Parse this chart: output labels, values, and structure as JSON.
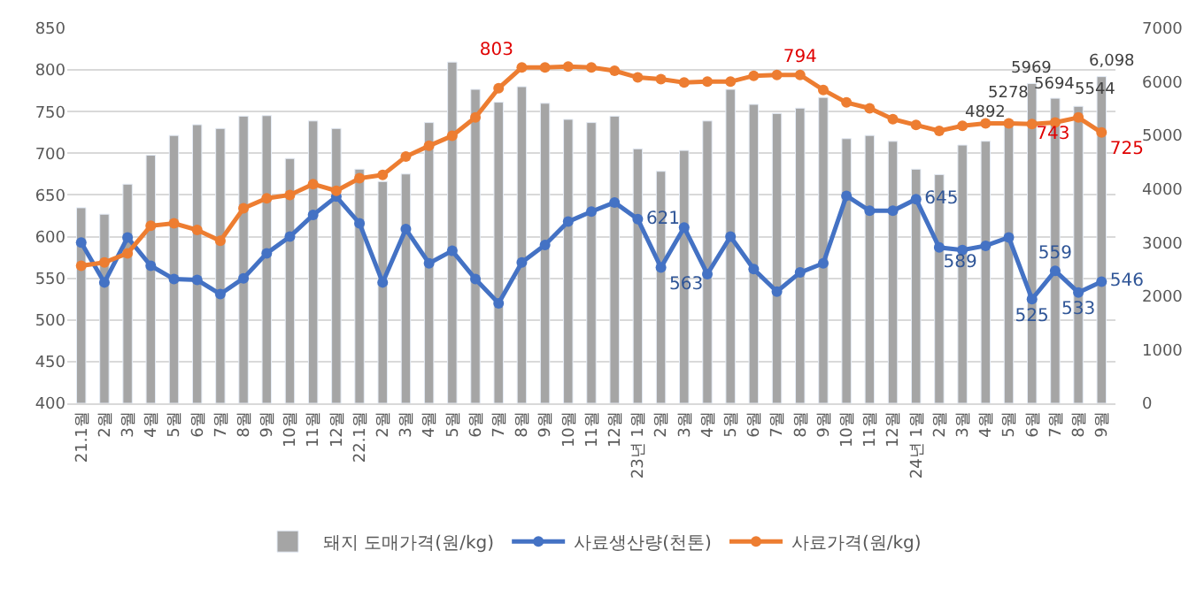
{
  "chart_data": {
    "type": "bar",
    "categories": [
      "21.1월",
      "2월",
      "3월",
      "4월",
      "5월",
      "6월",
      "7월",
      "8월",
      "9월",
      "10월",
      "11월",
      "12월",
      "22.1월",
      "2월",
      "3월",
      "4월",
      "5월",
      "6월",
      "7월",
      "8월",
      "9월",
      "10월",
      "11월",
      "12월",
      "23년 1월",
      "2월",
      "3월",
      "4월",
      "5월",
      "6월",
      "7월",
      "8월",
      "9월",
      "10월",
      "11월",
      "12월",
      "24년 1월",
      "2월",
      "3월",
      "4월",
      "5월",
      "6월",
      "7월",
      "8월",
      "9월"
    ],
    "series": [
      {
        "name": "돼지 도매가격(원/kg)",
        "axis": "y2",
        "color": "#a5a5a5",
        "values": [
          3650,
          3530,
          4090,
          4630,
          5000,
          5200,
          5130,
          5360,
          5370,
          4570,
          5270,
          5130,
          4370,
          4140,
          4280,
          5240,
          6370,
          5860,
          5620,
          5910,
          5600,
          5300,
          5240,
          5360,
          4750,
          4330,
          4720,
          5270,
          5860,
          5580,
          5410,
          5510,
          5710,
          4940,
          5000,
          4890,
          4370,
          4270,
          4820,
          4892,
          5278,
          5969,
          5694,
          5544,
          6098
        ],
        "value_labels": [
          null,
          null,
          null,
          null,
          null,
          null,
          null,
          null,
          null,
          null,
          null,
          null,
          null,
          null,
          null,
          null,
          null,
          null,
          null,
          null,
          null,
          null,
          null,
          null,
          null,
          null,
          null,
          null,
          null,
          null,
          null,
          null,
          null,
          null,
          null,
          null,
          null,
          null,
          null,
          "4892",
          "5278",
          "5969",
          "5694",
          "5544",
          "6,098"
        ]
      },
      {
        "name": "사료생산량(천톤)",
        "type": "line",
        "axis": "y",
        "color": "#4472c4",
        "marker": "circle",
        "values": [
          593,
          545,
          599,
          565,
          549,
          548,
          531,
          550,
          580,
          600,
          626,
          648,
          616,
          545,
          609,
          568,
          583,
          549,
          520,
          569,
          590,
          618,
          630,
          641,
          621,
          563,
          611,
          555,
          600,
          561,
          534,
          557,
          568,
          649,
          631,
          631,
          645,
          587,
          584,
          589,
          599,
          525,
          559,
          533,
          546
        ],
        "value_labels": [
          null,
          null,
          null,
          null,
          null,
          null,
          null,
          null,
          null,
          null,
          null,
          null,
          null,
          null,
          null,
          null,
          null,
          null,
          null,
          null,
          null,
          null,
          null,
          null,
          "621",
          "563",
          null,
          null,
          null,
          null,
          null,
          null,
          null,
          null,
          null,
          null,
          "645",
          null,
          null,
          "589",
          null,
          "525",
          "559",
          "533",
          "546"
        ]
      },
      {
        "name": "사료가격(원/kg)",
        "type": "line",
        "axis": "y",
        "color": "#ed7d31",
        "marker": "circle",
        "values": [
          565,
          569,
          580,
          613,
          616,
          608,
          595,
          634,
          646,
          650,
          663,
          655,
          670,
          674,
          696,
          709,
          721,
          743,
          778,
          803,
          803,
          804,
          803,
          799,
          791,
          789,
          785,
          786,
          786,
          793,
          794,
          794,
          776,
          761,
          754,
          741,
          734,
          727,
          733,
          736,
          736,
          735,
          737,
          743,
          725
        ],
        "value_labels": [
          null,
          null,
          null,
          null,
          null,
          null,
          null,
          null,
          null,
          null,
          null,
          null,
          null,
          null,
          null,
          null,
          null,
          null,
          null,
          "803",
          null,
          null,
          null,
          null,
          null,
          null,
          null,
          null,
          null,
          null,
          null,
          "794",
          null,
          null,
          null,
          null,
          null,
          null,
          null,
          null,
          null,
          null,
          null,
          "743",
          "725"
        ]
      }
    ],
    "ylim": [
      400,
      850
    ],
    "yticks": [
      400,
      450,
      500,
      550,
      600,
      650,
      700,
      750,
      800,
      850
    ],
    "y2lim": [
      0,
      7000
    ],
    "y2ticks": [
      0,
      1000,
      2000,
      3000,
      4000,
      5000,
      6000,
      7000
    ],
    "grid": "y",
    "legend": "bottom"
  }
}
